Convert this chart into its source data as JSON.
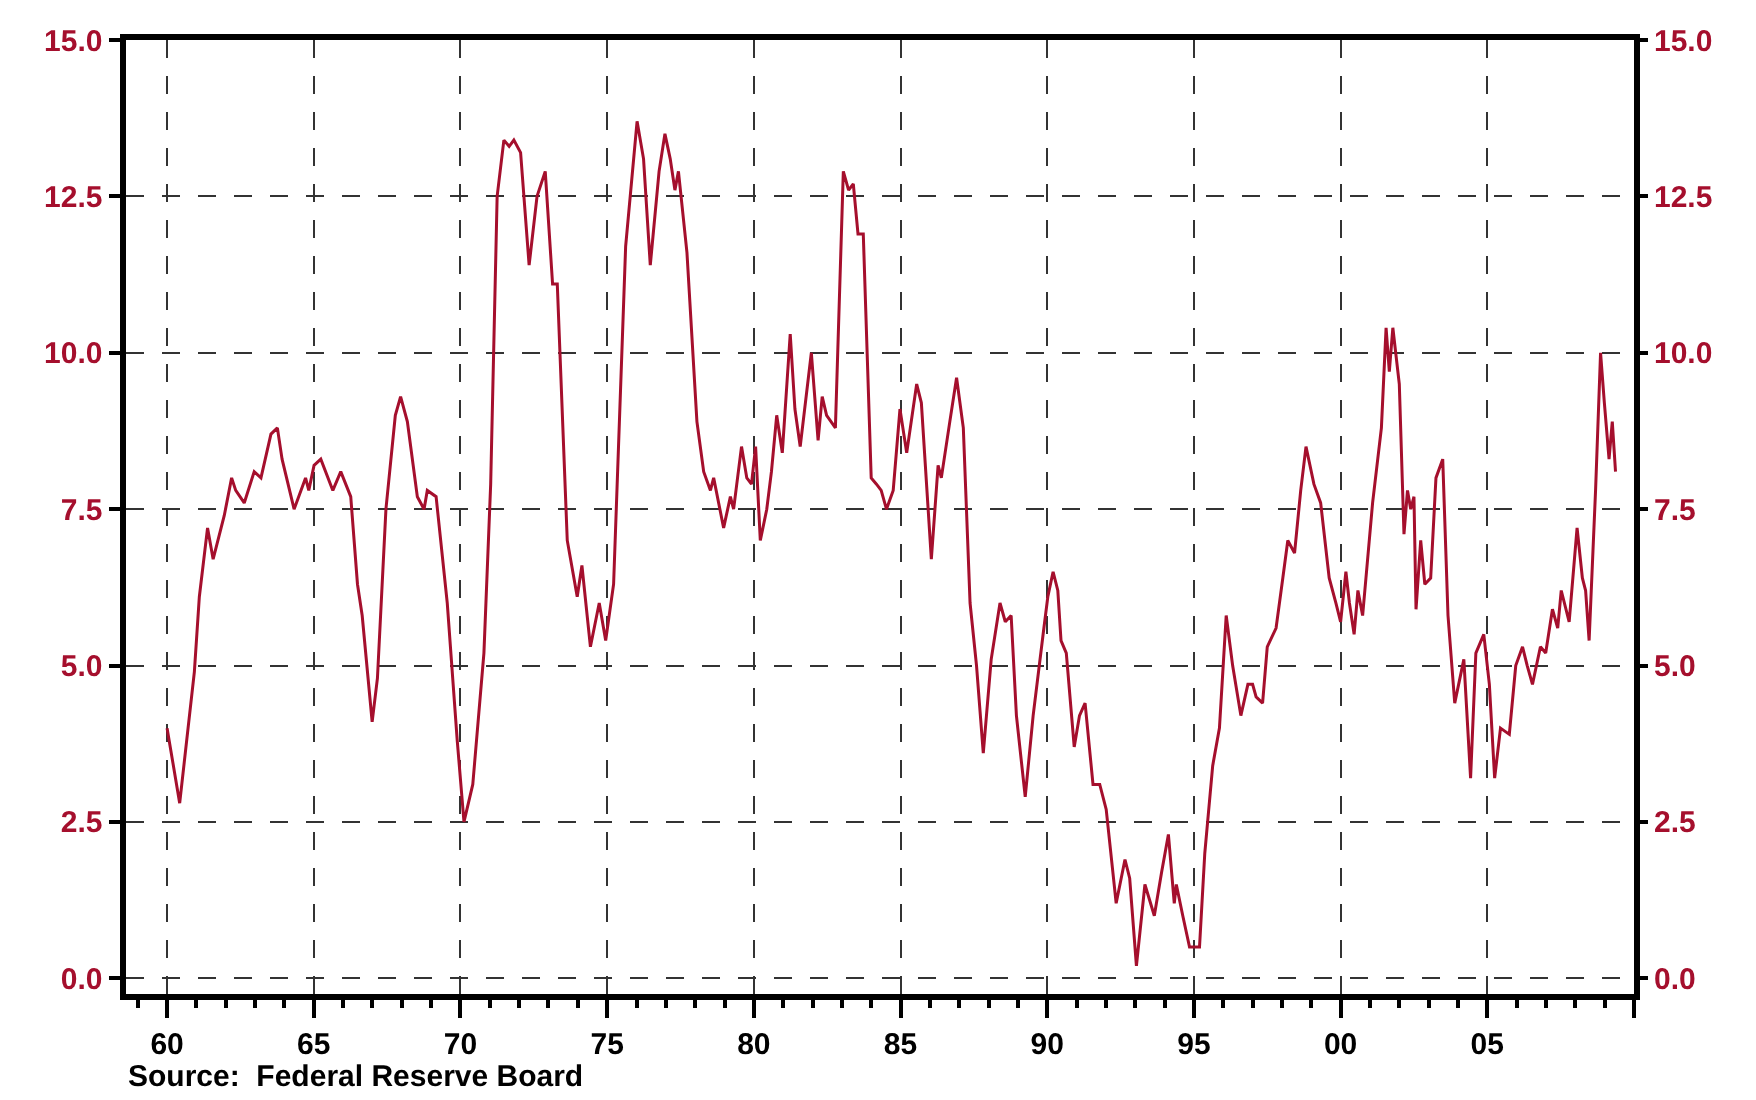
{
  "chart_data": {
    "type": "line",
    "annotations": [
      "Source:  Federal Reserve Board"
    ],
    "x": [
      1960.0,
      1960.43,
      1960.93,
      1961.1,
      1961.38,
      1961.57,
      1961.95,
      1962.2,
      1962.34,
      1962.63,
      1962.97,
      1963.2,
      1963.54,
      1963.76,
      1963.92,
      1964.33,
      1964.72,
      1964.83,
      1965.01,
      1965.24,
      1965.65,
      1965.92,
      1966.26,
      1966.49,
      1966.65,
      1966.99,
      1967.17,
      1967.46,
      1967.78,
      1967.96,
      1968.19,
      1968.53,
      1968.76,
      1968.87,
      1969.17,
      1969.55,
      1969.89,
      1970.12,
      1970.42,
      1970.8,
      1971.03,
      1971.25,
      1971.48,
      1971.66,
      1971.82,
      1972.05,
      1972.34,
      1972.61,
      1972.89,
      1973.14,
      1973.3,
      1973.64,
      1973.98,
      1974.14,
      1974.43,
      1974.73,
      1974.95,
      1975.22,
      1975.63,
      1976.02,
      1976.24,
      1976.47,
      1976.77,
      1976.97,
      1977.15,
      1977.31,
      1977.43,
      1977.72,
      1978.06,
      1978.29,
      1978.52,
      1978.63,
      1978.97,
      1979.2,
      1979.31,
      1979.58,
      1979.76,
      1979.92,
      1980.06,
      1980.22,
      1980.44,
      1980.6,
      1980.78,
      1980.97,
      1981.24,
      1981.4,
      1981.58,
      1981.96,
      1982.19,
      1982.33,
      1982.48,
      1982.78,
      1983.05,
      1983.23,
      1983.39,
      1983.55,
      1983.73,
      1984.0,
      1984.18,
      1984.34,
      1984.52,
      1984.75,
      1984.98,
      1985.21,
      1985.55,
      1985.71,
      1986.05,
      1986.28,
      1986.39,
      1986.68,
      1986.91,
      1987.14,
      1987.37,
      1987.59,
      1987.82,
      1988.09,
      1988.39,
      1988.57,
      1988.77,
      1988.95,
      1989.25,
      1989.52,
      1989.86,
      1990.02,
      1990.2,
      1990.36,
      1990.47,
      1990.65,
      1990.92,
      1991.1,
      1991.29,
      1991.56,
      1991.79,
      1992.01,
      1992.35,
      1992.65,
      1992.81,
      1993.04,
      1993.33,
      1993.65,
      1993.9,
      1994.13,
      1994.33,
      1994.4,
      1994.62,
      1994.85,
      1995.19,
      1995.37,
      1995.64,
      1995.87,
      1996.1,
      1996.32,
      1996.6,
      1996.84,
      1997.0,
      1997.12,
      1997.34,
      1997.5,
      1997.8,
      1998.03,
      1998.2,
      1998.43,
      1998.64,
      1998.82,
      1999.09,
      1999.32,
      1999.61,
      1999.84,
      2000.0,
      2000.18,
      2000.3,
      2000.46,
      2000.59,
      2000.75,
      2001.09,
      2001.39,
      2001.55,
      2001.66,
      2001.78,
      2002.0,
      2002.16,
      2002.28,
      2002.39,
      2002.5,
      2002.57,
      2002.73,
      2002.87,
      2003.07,
      2003.25,
      2003.48,
      2003.66,
      2003.89,
      2004.2,
      2004.43,
      2004.61,
      2004.88,
      2005.07,
      2005.25,
      2005.45,
      2005.75,
      2005.97,
      2006.2,
      2006.36,
      2006.54,
      2006.81,
      2006.99,
      2007.22,
      2007.4,
      2007.52,
      2007.79,
      2008.06,
      2008.24,
      2008.35,
      2008.47,
      2008.69,
      2008.86,
      2008.99,
      2009.15,
      2009.26,
      2009.37
    ],
    "series": [
      {
        "color": "#a50f2d",
        "values": [
          4.0,
          2.8,
          4.9,
          6.1,
          7.2,
          6.7,
          7.4,
          8.0,
          7.8,
          7.6,
          8.1,
          8.0,
          8.7,
          8.8,
          8.3,
          7.5,
          8.0,
          7.8,
          8.2,
          8.3,
          7.8,
          8.1,
          7.7,
          6.3,
          5.8,
          4.1,
          4.8,
          7.5,
          9.0,
          9.3,
          8.9,
          7.7,
          7.5,
          7.8,
          7.7,
          6.0,
          3.8,
          2.5,
          3.1,
          5.2,
          7.9,
          12.5,
          13.4,
          13.3,
          13.4,
          13.2,
          11.4,
          12.5,
          12.9,
          11.1,
          11.1,
          7.0,
          6.1,
          6.6,
          5.3,
          6.0,
          5.4,
          6.3,
          11.7,
          13.7,
          13.1,
          11.4,
          12.9,
          13.5,
          13.1,
          12.6,
          12.9,
          11.6,
          8.9,
          8.1,
          7.8,
          8.0,
          7.2,
          7.7,
          7.5,
          8.5,
          8.0,
          7.9,
          8.5,
          7.0,
          7.5,
          8.1,
          9.0,
          8.4,
          10.3,
          9.1,
          8.5,
          10.0,
          8.6,
          9.3,
          9.0,
          8.8,
          12.9,
          12.6,
          12.7,
          11.9,
          11.9,
          8.0,
          7.9,
          7.8,
          7.5,
          7.8,
          9.1,
          8.4,
          9.5,
          9.2,
          6.7,
          8.2,
          8.0,
          8.9,
          9.6,
          8.8,
          6.0,
          5.0,
          3.6,
          5.1,
          6.0,
          5.7,
          5.8,
          4.2,
          2.9,
          4.2,
          5.5,
          6.1,
          6.5,
          6.2,
          5.4,
          5.2,
          3.7,
          4.2,
          4.4,
          3.1,
          3.1,
          2.7,
          1.2,
          1.9,
          1.6,
          0.2,
          1.5,
          1.0,
          1.7,
          2.3,
          1.2,
          1.5,
          1.0,
          0.5,
          0.5,
          2.0,
          3.4,
          4.0,
          5.8,
          5.0,
          4.2,
          4.7,
          4.7,
          4.5,
          4.4,
          5.3,
          5.6,
          6.4,
          7.0,
          6.8,
          7.8,
          8.5,
          7.9,
          7.6,
          6.4,
          6.0,
          5.7,
          6.5,
          6.0,
          5.5,
          6.2,
          5.8,
          7.6,
          8.8,
          10.4,
          9.7,
          10.4,
          9.5,
          7.1,
          7.8,
          7.5,
          7.7,
          5.9,
          7.0,
          6.3,
          6.4,
          8.0,
          8.3,
          5.8,
          4.4,
          5.1,
          3.2,
          5.2,
          5.5,
          4.7,
          3.2,
          4.0,
          3.9,
          5.0,
          5.3,
          5.0,
          4.7,
          5.3,
          5.2,
          5.9,
          5.6,
          6.2,
          5.7,
          7.2,
          6.4,
          6.2,
          5.4,
          7.8,
          10.0,
          9.2,
          8.3,
          8.9,
          8.1
        ]
      }
    ],
    "xlim": [
      1958.6,
      2010
    ],
    "xticks": [
      {
        "value": 1960,
        "label": "60"
      },
      {
        "value": 1965,
        "label": "65"
      },
      {
        "value": 1970,
        "label": "70"
      },
      {
        "value": 1975,
        "label": "75"
      },
      {
        "value": 1980,
        "label": "80"
      },
      {
        "value": 1985,
        "label": "85"
      },
      {
        "value": 1990,
        "label": "90"
      },
      {
        "value": 1995,
        "label": "95"
      },
      {
        "value": 2000,
        "label": "00"
      },
      {
        "value": 2005,
        "label": "05"
      },
      {
        "value": 2010,
        "label": null
      }
    ],
    "ylim": [
      -0.25,
      15
    ],
    "yticks": [
      {
        "value": 0,
        "label": "0.0"
      },
      {
        "value": 2.5,
        "label": "2.5"
      },
      {
        "value": 5,
        "label": "5.0"
      },
      {
        "value": 7.5,
        "label": "7.5"
      },
      {
        "value": 10,
        "label": "10.0"
      },
      {
        "value": 12.5,
        "label": "12.5"
      },
      {
        "value": 15,
        "label": "15.0"
      }
    ],
    "y2lim": [
      -0.25,
      15
    ],
    "y2ticks": [
      {
        "value": 0,
        "label": "0.0"
      },
      {
        "value": 2.5,
        "label": "2.5"
      },
      {
        "value": 5,
        "label": "5.0"
      },
      {
        "value": 7.5,
        "label": "7.5"
      },
      {
        "value": 10,
        "label": "10.0"
      },
      {
        "value": 12.5,
        "label": "12.5"
      },
      {
        "value": 15,
        "label": "15.0"
      }
    ],
    "grid": true,
    "line_style": "solid"
  }
}
